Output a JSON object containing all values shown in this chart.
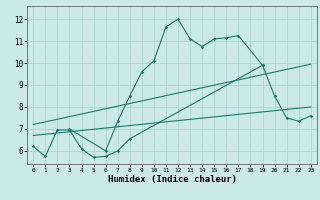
{
  "xlabel": "Humidex (Indice chaleur)",
  "background_color": "#cce9e9",
  "grid_color": "#aacfcf",
  "line_color": "#1a7a6e",
  "xlim": [
    -0.5,
    23.5
  ],
  "ylim": [
    5.4,
    12.6
  ],
  "xticks": [
    0,
    1,
    2,
    3,
    4,
    5,
    6,
    7,
    8,
    9,
    10,
    11,
    12,
    13,
    14,
    15,
    16,
    17,
    18,
    19,
    20,
    21,
    22,
    23
  ],
  "yticks": [
    6,
    7,
    8,
    9,
    10,
    11,
    12
  ],
  "line1_x": [
    0,
    1,
    2,
    3,
    4,
    5,
    6,
    7,
    8,
    19,
    20,
    21,
    22,
    23
  ],
  "line1_y": [
    6.2,
    5.75,
    6.95,
    6.95,
    6.1,
    5.7,
    5.75,
    6.0,
    6.55,
    9.9,
    8.5,
    7.5,
    7.35,
    7.6
  ],
  "line2_x": [
    3,
    6,
    7,
    8,
    9,
    10,
    11,
    12,
    13,
    14,
    15,
    16,
    17,
    19
  ],
  "line2_y": [
    7.0,
    6.0,
    7.35,
    8.5,
    9.6,
    10.1,
    11.65,
    12.0,
    11.1,
    10.75,
    11.1,
    11.15,
    11.25,
    9.9
  ],
  "line3_x": [
    0,
    23
  ],
  "line3_y": [
    6.7,
    8.0
  ],
  "line4_x": [
    0,
    23
  ],
  "line4_y": [
    7.2,
    9.95
  ]
}
